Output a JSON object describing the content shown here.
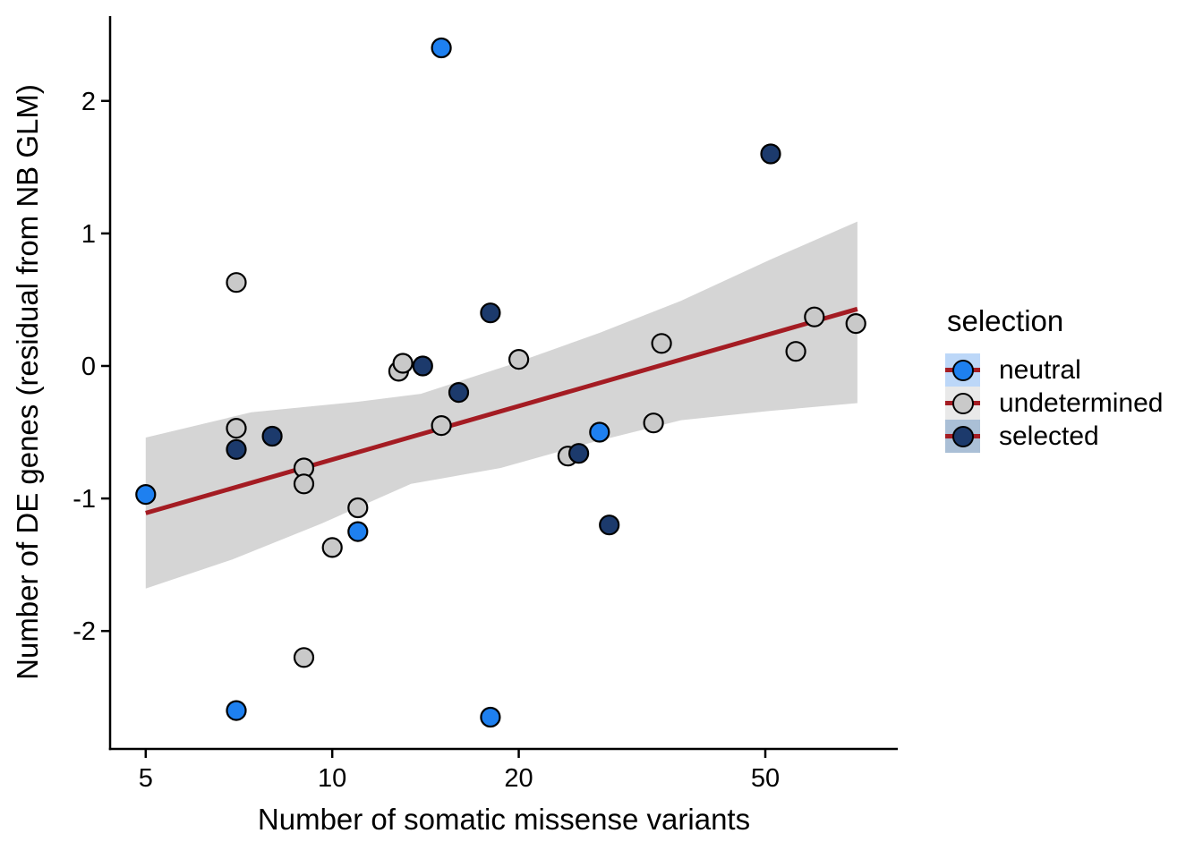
{
  "chart_data": {
    "type": "scatter",
    "title": "",
    "xlabel": "Number of somatic missense variants",
    "ylabel": "Number of DE genes (residual from NB GLM)",
    "x_scale": "log10",
    "x_domain": [
      4.38,
      81.8
    ],
    "y_domain": [
      -2.89,
      2.64
    ],
    "x_ticks": [
      5,
      10,
      20,
      50
    ],
    "y_ticks": [
      2,
      1,
      0,
      -1,
      -2
    ],
    "grid": false,
    "legend": {
      "title": "selection",
      "position": "right",
      "entries": [
        {
          "label": "neutral",
          "point_color": "#1e80f0",
          "key_bg": "#bcd7f8"
        },
        {
          "label": "undetermined",
          "point_color": "#c9c9c9",
          "key_bg": "#e9e9e9"
        },
        {
          "label": "selected",
          "point_color": "#1c3a6c",
          "key_bg": "#aabfd6"
        }
      ]
    },
    "series": [
      {
        "name": "neutral",
        "color": "#1e80f0",
        "points": [
          [
            15,
            2.4
          ],
          [
            27,
            -0.5
          ],
          [
            5,
            -0.97
          ],
          [
            11,
            -1.25
          ],
          [
            7,
            -2.6
          ],
          [
            18,
            -2.65
          ]
        ]
      },
      {
        "name": "undetermined",
        "color": "#c9c9c9",
        "points": [
          [
            7,
            0.63
          ],
          [
            60,
            0.37
          ],
          [
            70,
            0.32
          ],
          [
            34,
            0.17
          ],
          [
            56,
            0.11
          ],
          [
            20,
            0.05
          ],
          [
            12.8,
            -0.04
          ],
          [
            13,
            0.02
          ],
          [
            15,
            -0.45
          ],
          [
            33,
            -0.43
          ],
          [
            7,
            -0.47
          ],
          [
            24,
            -0.68
          ],
          [
            9,
            -0.77
          ],
          [
            9,
            -0.89
          ],
          [
            11,
            -1.07
          ],
          [
            10,
            -1.37
          ],
          [
            9,
            -2.2
          ]
        ]
      },
      {
        "name": "selected",
        "color": "#1c3a6c",
        "points": [
          [
            51,
            1.6
          ],
          [
            18,
            0.4
          ],
          [
            14,
            0.0
          ],
          [
            16,
            -0.2
          ],
          [
            8,
            -0.53
          ],
          [
            7,
            -0.63
          ],
          [
            25,
            -0.66
          ],
          [
            28,
            -1.2
          ]
        ]
      }
    ],
    "trend_line": {
      "color": "#a41c23",
      "x": [
        5,
        70.4
      ],
      "y": [
        -1.11,
        0.43
      ]
    },
    "confidence_band": {
      "color": "#d5d5d5",
      "upper": [
        [
          5,
          -0.54
        ],
        [
          7.4,
          -0.35
        ],
        [
          11,
          -0.27
        ],
        [
          13.9,
          -0.21
        ],
        [
          19.4,
          0.01
        ],
        [
          27,
          0.25
        ],
        [
          36.5,
          0.49
        ],
        [
          50.8,
          0.8
        ],
        [
          70.4,
          1.09
        ]
      ],
      "lower": [
        [
          5,
          -1.68
        ],
        [
          6.9,
          -1.46
        ],
        [
          9.6,
          -1.19
        ],
        [
          13.4,
          -0.89
        ],
        [
          18.7,
          -0.77
        ],
        [
          26.1,
          -0.58
        ],
        [
          36.5,
          -0.41
        ],
        [
          50.8,
          -0.34
        ],
        [
          70.4,
          -0.28
        ]
      ]
    },
    "point_style": {
      "radius": 10.5,
      "stroke": "#000000",
      "stroke_width": 2.2
    }
  }
}
